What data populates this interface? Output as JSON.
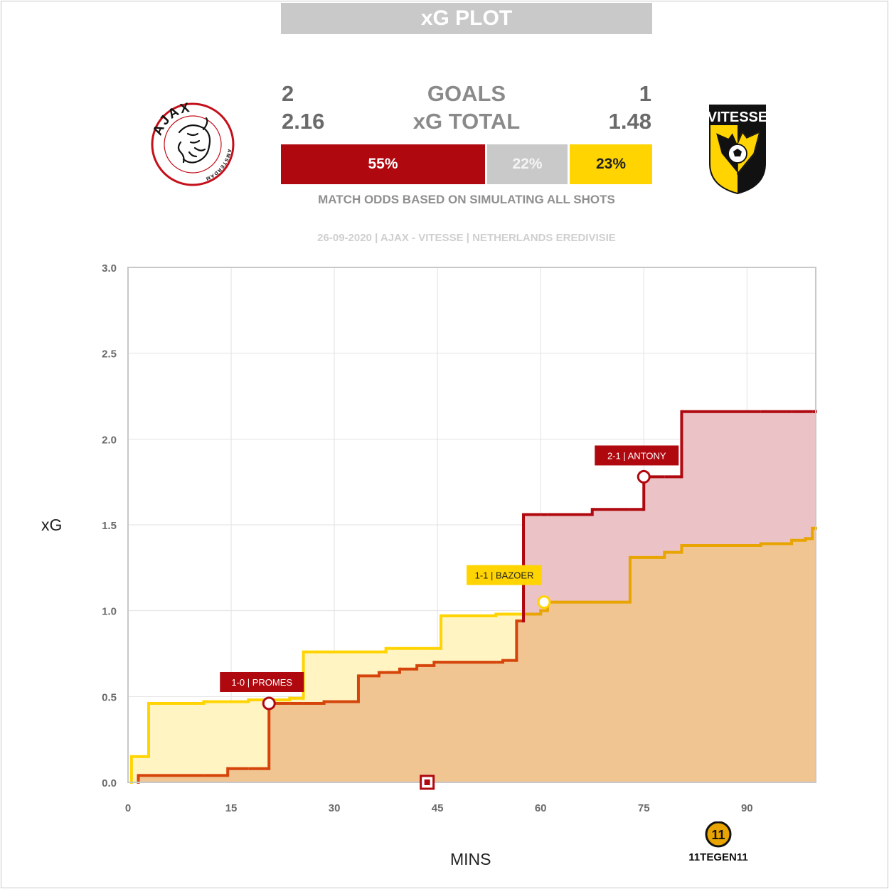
{
  "header": {
    "title": "xG PLOT",
    "goals_label": "GOALS",
    "xg_label": "xG TOTAL",
    "home_goals": "2",
    "away_goals": "1",
    "home_xg": "2.16",
    "away_xg": "1.48",
    "odds": {
      "home": "55%",
      "draw": "22%",
      "away": "23%"
    },
    "odds_caption": "MATCH ODDS BASED ON SIMULATING ALL SHOTS",
    "match_info": "26-09-2020 | AJAX - VITESSE | NETHERLANDS EREDIVISIE"
  },
  "logos": {
    "home_ring_top": "AJAX",
    "home_ring_bottom": "AMSTERDAM",
    "away_name": "VITESSE",
    "brand": "11TEGEN11",
    "brand_mark": "11"
  },
  "colors": {
    "home": "#b0080f",
    "home_fill": "#ebc2c5",
    "away": "#ffd400",
    "away_fill": "#fff4c2",
    "overlap_fill": "#f0c592",
    "home_line_low": "#d5440a",
    "away_line_low": "#e8a400",
    "draw": "#c9c9c9"
  },
  "chart_data": {
    "type": "area",
    "xlabel": "MINS",
    "ylabel": "xG",
    "xlim": [
      0,
      100
    ],
    "ylim": [
      0,
      3
    ],
    "xticks": [
      0,
      15,
      30,
      45,
      60,
      75,
      90
    ],
    "yticks": [
      0.0,
      0.5,
      1.0,
      1.5,
      2.0,
      2.5,
      3.0
    ],
    "grid": true,
    "series": [
      {
        "team": "home",
        "steps": [
          [
            1.5,
            0.04
          ],
          [
            14.5,
            0.08
          ],
          [
            20.5,
            0.46
          ],
          [
            28.5,
            0.47
          ],
          [
            33.5,
            0.62
          ],
          [
            36.5,
            0.64
          ],
          [
            39.5,
            0.66
          ],
          [
            42,
            0.68
          ],
          [
            44.5,
            0.7
          ],
          [
            54.5,
            0.71
          ],
          [
            56.5,
            0.94
          ],
          [
            57.5,
            1.56
          ],
          [
            67.5,
            1.59
          ],
          [
            75,
            1.78
          ],
          [
            80.5,
            2.16
          ],
          [
            100,
            2.16
          ]
        ]
      },
      {
        "team": "away",
        "steps": [
          [
            0.5,
            0.15
          ],
          [
            3,
            0.46
          ],
          [
            11,
            0.47
          ],
          [
            17.5,
            0.48
          ],
          [
            23.5,
            0.49
          ],
          [
            25.5,
            0.76
          ],
          [
            37.5,
            0.78
          ],
          [
            45.5,
            0.97
          ],
          [
            53.5,
            0.98
          ],
          [
            60,
            1.0
          ],
          [
            61,
            1.05
          ],
          [
            73,
            1.31
          ],
          [
            78,
            1.34
          ],
          [
            80.5,
            1.38
          ],
          [
            92,
            1.39
          ],
          [
            96.5,
            1.41
          ],
          [
            98.5,
            1.42
          ],
          [
            99.5,
            1.48
          ],
          [
            100,
            1.48
          ]
        ]
      }
    ],
    "goals": [
      {
        "team": "home",
        "minute": 20.5,
        "xg": 0.46,
        "label": "1-0 | PROMES"
      },
      {
        "team": "away",
        "minute": 60.5,
        "xg": 1.05,
        "label": "1-1 | BAZOER"
      },
      {
        "team": "home",
        "minute": 75,
        "xg": 1.78,
        "label": "2-1 | ANTONY"
      }
    ],
    "markers": [
      {
        "type": "halftime",
        "minute": 43.5,
        "xg": 0.0
      }
    ]
  }
}
